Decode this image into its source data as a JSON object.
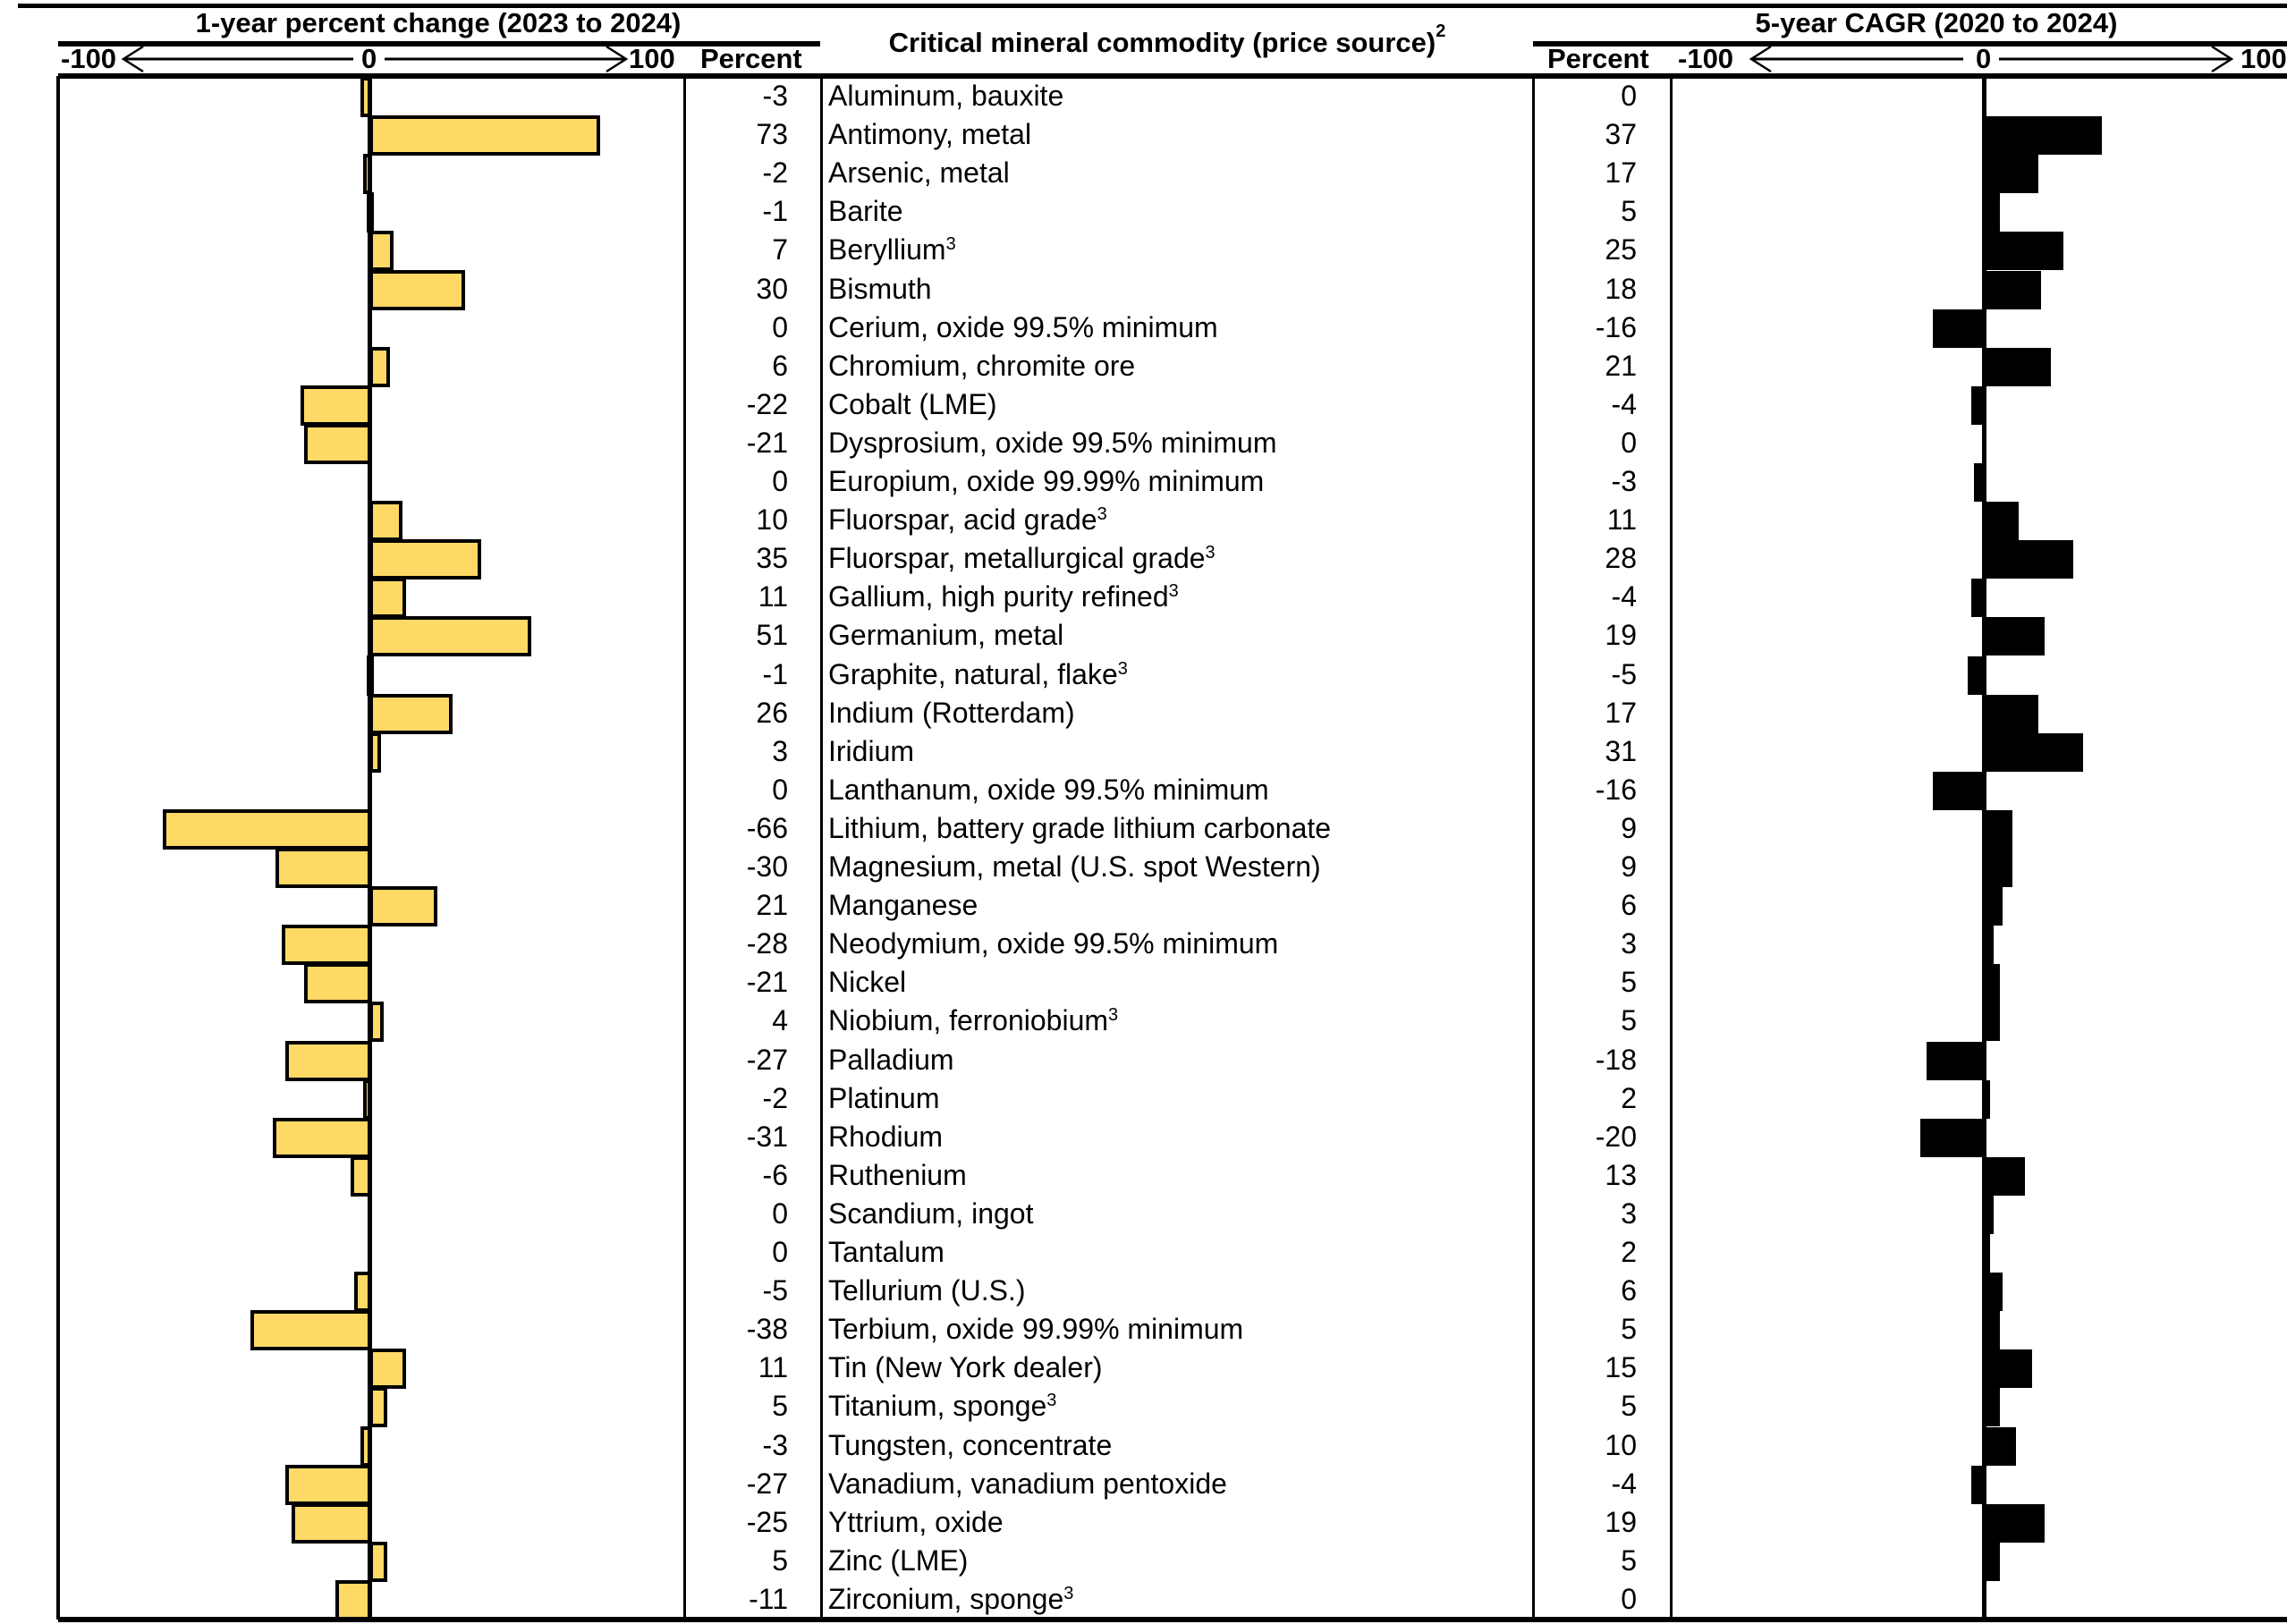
{
  "header": {
    "left_title": "1-year percent change (2023 to 2024)",
    "center_title": "Critical mineral commodity (price source)",
    "center_title_sup": "2",
    "right_title": "5-year CAGR (2020 to 2024)",
    "left_axis": {
      "min_label": "-100",
      "zero_label": "0",
      "max_label": "100",
      "percent_label": "Percent"
    },
    "right_axis": {
      "min_label": "-100",
      "zero_label": "0",
      "max_label": "100",
      "percent_label": "Percent"
    }
  },
  "colors": {
    "one_year_bar": "#FFD966",
    "cagr_bar": "#000000"
  },
  "chart_data": {
    "type": "bar",
    "orientation": "horizontal",
    "xlim": [
      -100,
      100
    ],
    "categories": [
      {
        "name": "Aluminum, bauxite",
        "sup": ""
      },
      {
        "name": "Antimony, metal",
        "sup": ""
      },
      {
        "name": "Arsenic, metal",
        "sup": ""
      },
      {
        "name": "Barite",
        "sup": ""
      },
      {
        "name": "Beryllium",
        "sup": "3"
      },
      {
        "name": "Bismuth",
        "sup": ""
      },
      {
        "name": "Cerium, oxide 99.5% minimum",
        "sup": ""
      },
      {
        "name": "Chromium, chromite ore",
        "sup": ""
      },
      {
        "name": "Cobalt (LME)",
        "sup": ""
      },
      {
        "name": "Dysprosium, oxide 99.5% minimum",
        "sup": ""
      },
      {
        "name": "Europium, oxide 99.99% minimum",
        "sup": ""
      },
      {
        "name": "Fluorspar, acid grade",
        "sup": "3"
      },
      {
        "name": "Fluorspar, metallurgical grade",
        "sup": "3"
      },
      {
        "name": "Gallium, high purity refined",
        "sup": "3"
      },
      {
        "name": "Germanium, metal",
        "sup": ""
      },
      {
        "name": "Graphite, natural, flake",
        "sup": "3"
      },
      {
        "name": "Indium (Rotterdam)",
        "sup": ""
      },
      {
        "name": "Iridium",
        "sup": ""
      },
      {
        "name": "Lanthanum, oxide 99.5% minimum",
        "sup": ""
      },
      {
        "name": "Lithium, battery grade lithium carbonate",
        "sup": ""
      },
      {
        "name": "Magnesium, metal (U.S. spot Western)",
        "sup": ""
      },
      {
        "name": "Manganese",
        "sup": ""
      },
      {
        "name": "Neodymium, oxide 99.5% minimum",
        "sup": ""
      },
      {
        "name": "Nickel",
        "sup": ""
      },
      {
        "name": "Niobium, ferroniobium",
        "sup": "3"
      },
      {
        "name": "Palladium",
        "sup": ""
      },
      {
        "name": "Platinum",
        "sup": ""
      },
      {
        "name": "Rhodium",
        "sup": ""
      },
      {
        "name": "Ruthenium",
        "sup": ""
      },
      {
        "name": "Scandium, ingot",
        "sup": ""
      },
      {
        "name": "Tantalum",
        "sup": ""
      },
      {
        "name": "Tellurium (U.S.)",
        "sup": ""
      },
      {
        "name": "Terbium, oxide 99.99% minimum",
        "sup": ""
      },
      {
        "name": "Tin (New York dealer)",
        "sup": ""
      },
      {
        "name": "Titanium, sponge",
        "sup": "3"
      },
      {
        "name": "Tungsten, concentrate",
        "sup": ""
      },
      {
        "name": "Vanadium, vanadium pentoxide",
        "sup": ""
      },
      {
        "name": "Yttrium, oxide",
        "sup": ""
      },
      {
        "name": "Zinc (LME)",
        "sup": ""
      },
      {
        "name": "Zirconium, sponge",
        "sup": "3"
      }
    ],
    "series": [
      {
        "name": "1-year percent change (2023 to 2024)",
        "values": [
          -3,
          73,
          -2,
          -1,
          7,
          30,
          0,
          6,
          -22,
          -21,
          0,
          10,
          35,
          11,
          51,
          -1,
          26,
          3,
          0,
          -66,
          -30,
          21,
          -28,
          -21,
          4,
          -27,
          -2,
          -31,
          -6,
          0,
          0,
          -5,
          -38,
          11,
          5,
          -3,
          -27,
          -25,
          5,
          -11
        ]
      },
      {
        "name": "5-year CAGR (2020 to 2024)",
        "values": [
          0,
          37,
          17,
          5,
          25,
          18,
          -16,
          21,
          -4,
          0,
          -3,
          11,
          28,
          -4,
          19,
          -5,
          17,
          31,
          -16,
          9,
          9,
          6,
          3,
          5,
          5,
          -18,
          2,
          -20,
          13,
          3,
          2,
          6,
          5,
          15,
          5,
          10,
          -4,
          19,
          5,
          0
        ]
      }
    ]
  }
}
